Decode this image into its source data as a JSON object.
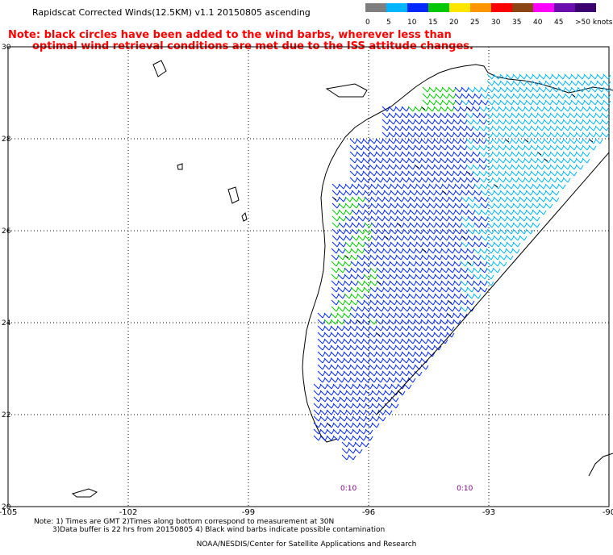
{
  "header": {
    "title": "Rapidscat Corrected Winds(12.5KM) v1.1 20150805 ascending",
    "note_line1": "Note: black circles have been added to the wind barbs, wherever less than",
    "note_line2": "optimal wind retrieval conditions are met due to the ISS attitude changes."
  },
  "legend": {
    "unit": "knots",
    "labels": [
      "0",
      "5",
      "10",
      "15",
      "20",
      "25",
      "30",
      "35",
      "40",
      "45",
      ">50 knots"
    ],
    "colors": [
      "#7f7f7f",
      "#00b4ff",
      "#0028ff",
      "#00c800",
      "#ffe600",
      "#ff9600",
      "#ff0000",
      "#8b4513",
      "#ff00ff",
      "#6a0dad",
      "#3a0070"
    ]
  },
  "chart_data": {
    "type": "map",
    "x_ticks": [
      "-105",
      "-102",
      "-99",
      "-96",
      "-93",
      "-90"
    ],
    "y_ticks": [
      "30",
      "28",
      "26",
      "24",
      "22",
      "20"
    ],
    "xlim": [
      -105,
      -90
    ],
    "ylim": [
      20,
      30
    ],
    "grid": true,
    "time_labels": [
      {
        "text": "0:10",
        "lon": -96.5
      },
      {
        "text": "0:10",
        "lon": -93.6
      }
    ],
    "swath_edge": [
      [
        -95.8,
        22.0
      ],
      [
        -94.2,
        23.5
      ],
      [
        -92.7,
        25.0
      ],
      [
        -91.2,
        26.5
      ],
      [
        -90.0,
        27.7
      ]
    ],
    "wind_regions": [
      {
        "speed_class": "10-15",
        "area": "western Gulf swath (dominant)"
      },
      {
        "speed_class": "5-10",
        "area": "eastern part of swath"
      },
      {
        "speed_class": "15-20",
        "area": "near Texas coast, 24N-26N and 28.5N-29.5N"
      }
    ]
  },
  "footer": {
    "line1": "Note: 1) Times are GMT 2)Times along bottom correspond to measurement at 30N",
    "line2": "3)Data buffer is 22 hrs from 20150805 4) Black wind barbs indicate possible contamination",
    "credit": "NOAA/NESDIS/Center for Satellite Applications and Research"
  }
}
